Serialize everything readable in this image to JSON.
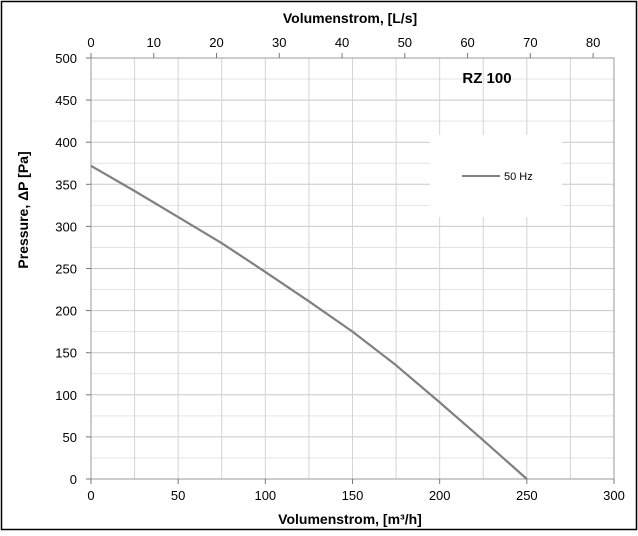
{
  "chart_data": {
    "type": "line",
    "title": "RZ 100",
    "xlabel": "Volumenstrom, [m³/h]",
    "x2label": "Volumenstrom, [L/s]",
    "ylabel": "Pressure, ΔP [Pa]",
    "xlim": [
      0,
      300
    ],
    "x2lim": [
      0,
      83.33
    ],
    "ylim": [
      0,
      500
    ],
    "x_ticks": [
      0,
      50,
      100,
      150,
      200,
      250,
      300
    ],
    "x2_ticks": [
      0,
      10,
      20,
      30,
      40,
      50,
      60,
      70,
      80
    ],
    "y_ticks": [
      0,
      50,
      100,
      150,
      200,
      250,
      300,
      350,
      400,
      450,
      500
    ],
    "grid": true,
    "legend_position": "right",
    "series": [
      {
        "name": "50 Hz",
        "color": "#808080",
        "x": [
          0,
          25,
          50,
          75,
          100,
          125,
          150,
          175,
          200,
          225,
          250
        ],
        "y": [
          372,
          342,
          311,
          280,
          246,
          211,
          175,
          135,
          91,
          46,
          0
        ]
      }
    ]
  }
}
